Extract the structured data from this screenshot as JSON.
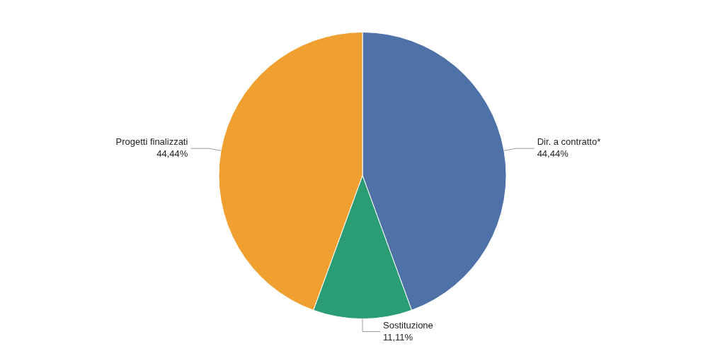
{
  "chart_data": {
    "type": "pie",
    "categories": [
      "Dir. a contratto*",
      "Sostituzione",
      "Progetti finalizzati"
    ],
    "values": [
      44.44,
      11.11,
      44.44
    ],
    "value_labels": [
      "44,44%",
      "11,11%",
      "44,44%"
    ],
    "colors": [
      "#4e72a8",
      "#2a9d74",
      "#f0a030"
    ],
    "data_labels": true,
    "legend": false
  }
}
